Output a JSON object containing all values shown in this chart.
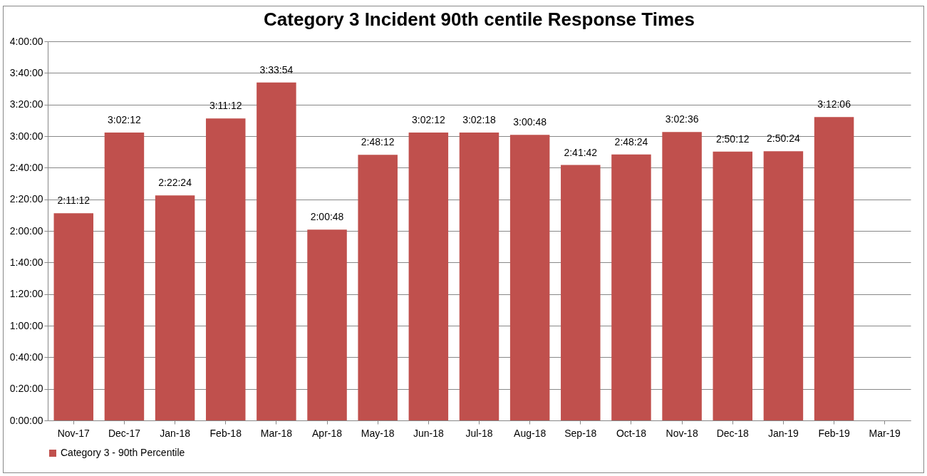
{
  "chart_data": {
    "type": "bar",
    "title": "Category 3 Incident 90th centile Response Times",
    "categories": [
      "Nov-17",
      "Dec-17",
      "Jan-18",
      "Feb-18",
      "Mar-18",
      "Apr-18",
      "May-18",
      "Jun-18",
      "Jul-18",
      "Aug-18",
      "Sep-18",
      "Oct-18",
      "Nov-18",
      "Dec-18",
      "Jan-19",
      "Feb-19",
      "Mar-19"
    ],
    "series": [
      {
        "name": "Category 3 - 90th Percentile",
        "color": "#c0504d",
        "values": [
          7872,
          10932,
          8544,
          11472,
          12834,
          7248,
          10092,
          10932,
          10938,
          10848,
          9702,
          10104,
          10956,
          10212,
          10224,
          11526,
          null
        ],
        "value_labels": [
          "2:11:12",
          "3:02:12",
          "2:22:24",
          "3:11:12",
          "3:33:54",
          "2:00:48",
          "2:48:12",
          "3:02:12",
          "3:02:18",
          "3:00:48",
          "2:41:42",
          "2:48:24",
          "3:02:36",
          "2:50:12",
          "2:50:24",
          "3:12:06",
          null
        ]
      }
    ],
    "ylim": [
      0,
      14400
    ],
    "yticks": [
      {
        "value": 0,
        "label": "0:00:00"
      },
      {
        "value": 1200,
        "label": "0:20:00"
      },
      {
        "value": 2400,
        "label": "0:40:00"
      },
      {
        "value": 3600,
        "label": "1:00:00"
      },
      {
        "value": 4800,
        "label": "1:20:00"
      },
      {
        "value": 6000,
        "label": "1:40:00"
      },
      {
        "value": 7200,
        "label": "2:00:00"
      },
      {
        "value": 8400,
        "label": "2:20:00"
      },
      {
        "value": 9600,
        "label": "2:40:00"
      },
      {
        "value": 10800,
        "label": "3:00:00"
      },
      {
        "value": 12000,
        "label": "3:20:00"
      },
      {
        "value": 13200,
        "label": "3:40:00"
      },
      {
        "value": 14400,
        "label": "4:00:00"
      }
    ],
    "grid": "y",
    "legend": "bottom"
  }
}
